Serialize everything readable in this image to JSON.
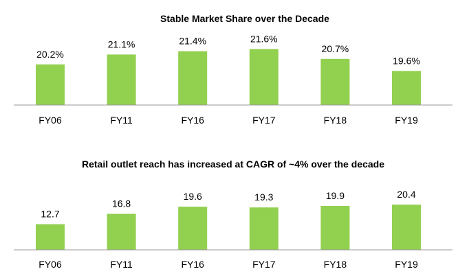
{
  "colors": {
    "bar": "#92d050",
    "axis": "#999999",
    "text": "#000000"
  },
  "chart_data": [
    {
      "type": "bar",
      "title": "Stable Market Share over the Decade",
      "categories": [
        "FY06",
        "FY11",
        "FY16",
        "FY17",
        "FY18",
        "FY19"
      ],
      "values": [
        20.2,
        21.1,
        21.4,
        21.6,
        20.7,
        19.6
      ],
      "labels": [
        "20.2%",
        "21.1%",
        "21.4%",
        "21.6%",
        "20.7%",
        "19.6%"
      ],
      "xlabel": "",
      "ylabel": "",
      "ylim": [
        16.5,
        22
      ],
      "grid": false,
      "legend": "none"
    },
    {
      "type": "bar",
      "title": "Retail outlet reach has increased at CAGR of ~4% over the decade",
      "categories": [
        "FY06",
        "FY11",
        "FY16",
        "FY17",
        "FY18",
        "FY19"
      ],
      "values": [
        12.7,
        16.8,
        19.6,
        19.3,
        19.9,
        20.4
      ],
      "labels": [
        "12.7",
        "16.8",
        "19.6",
        "19.3",
        "19.9",
        "20.4"
      ],
      "xlabel": "",
      "ylabel": "",
      "ylim": [
        2.6,
        21
      ],
      "grid": false,
      "legend": "none"
    }
  ]
}
